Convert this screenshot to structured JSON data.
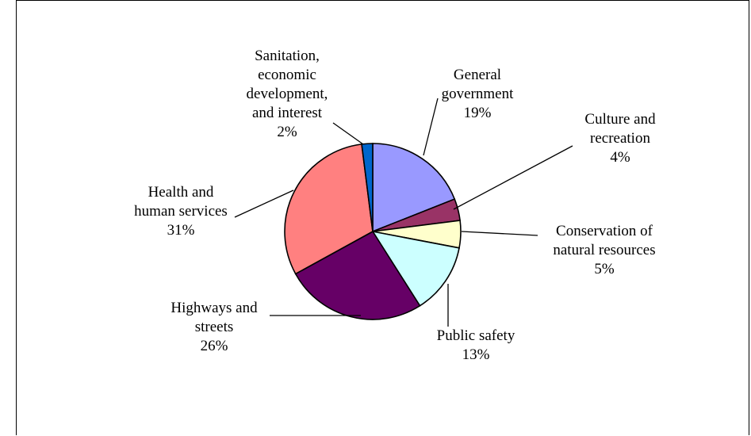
{
  "chart_data": {
    "type": "pie",
    "title": "",
    "legend": "none",
    "slices": [
      {
        "label": [
          "General",
          "government"
        ],
        "percent_text": "19%",
        "value": 19,
        "color": "#9999FF"
      },
      {
        "label": [
          "Culture and",
          "recreation"
        ],
        "percent_text": "4%",
        "value": 4,
        "color": "#993366"
      },
      {
        "label": [
          "Conservation of",
          "natural resources"
        ],
        "percent_text": "5%",
        "value": 5,
        "color": "#FFFFCC"
      },
      {
        "label": [
          "Public safety"
        ],
        "percent_text": "13%",
        "value": 13,
        "color": "#CCFFFF"
      },
      {
        "label": [
          "Highways and",
          "streets"
        ],
        "percent_text": "26%",
        "value": 26,
        "color": "#660066"
      },
      {
        "label": [
          "Health and",
          "human services"
        ],
        "percent_text": "31%",
        "value": 31,
        "color": "#FF8080"
      },
      {
        "label": [
          "Sanitation,",
          "economic",
          "development,",
          "and interest"
        ],
        "percent_text": "2%",
        "value": 2,
        "color": "#0066CC"
      }
    ]
  }
}
